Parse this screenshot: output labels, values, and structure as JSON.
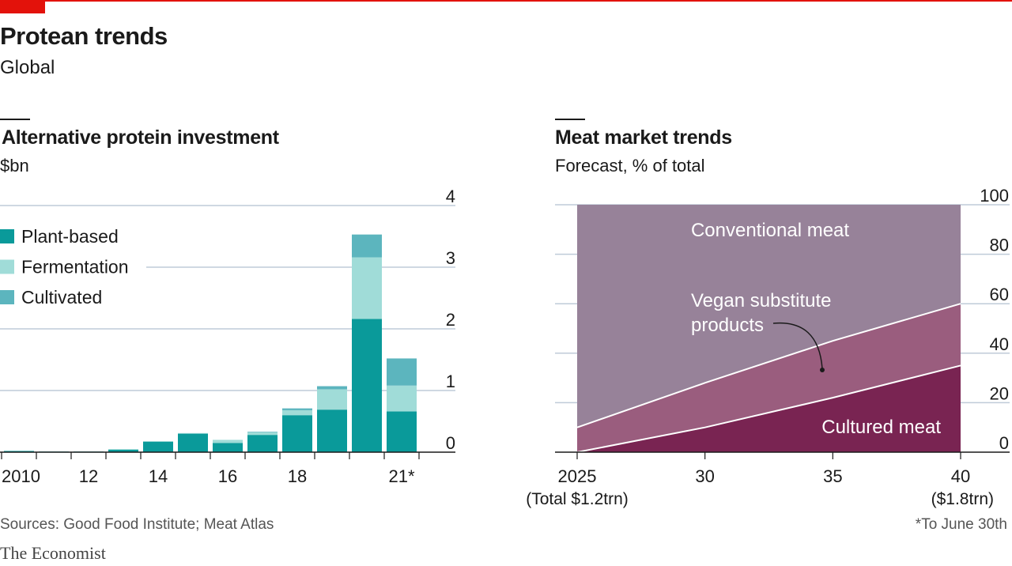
{
  "header": {
    "title": "Protean trends",
    "subtitle": "Global"
  },
  "footer": {
    "sources": "Sources: Good Food Institute; Meat Atlas",
    "note": "*To June 30th",
    "brand": "The Economist"
  },
  "colors": {
    "brand_red": "#e3120b",
    "plant_based": "#0a9a9a",
    "fermentation": "#a0dcd8",
    "cultivated": "#5cb5be",
    "conventional_meat": "#978299",
    "vegan_substitute": "#9a5d7e",
    "cultured_meat": "#792452",
    "gridline": "#bfcbd8"
  },
  "chart_data": [
    {
      "type": "bar",
      "stacked": true,
      "title": "Alternative protein investment",
      "subtitle": "$bn",
      "x": [
        2010,
        2011,
        2012,
        2013,
        2014,
        2015,
        2016,
        2017,
        2018,
        2019,
        2020,
        2021
      ],
      "x_tick_labels": [
        {
          "x": 2010,
          "label": "2010"
        },
        {
          "x": 2012,
          "label": "12"
        },
        {
          "x": 2014,
          "label": "14"
        },
        {
          "x": 2016,
          "label": "16"
        },
        {
          "x": 2018,
          "label": "18"
        },
        {
          "x": 2021,
          "label": "21*"
        }
      ],
      "series": [
        {
          "name": "Plant-based",
          "values": [
            0.02,
            0.01,
            0.01,
            0.04,
            0.17,
            0.3,
            0.15,
            0.28,
            0.6,
            0.69,
            2.16,
            0.66
          ]
        },
        {
          "name": "Fermentation",
          "values": [
            0,
            0,
            0,
            0.01,
            0.01,
            0.01,
            0.05,
            0.04,
            0.08,
            0.33,
            1.0,
            0.42
          ]
        },
        {
          "name": "Cultivated",
          "values": [
            0,
            0,
            0,
            0,
            0,
            0,
            0,
            0.01,
            0.03,
            0.05,
            0.37,
            0.44
          ]
        }
      ],
      "ylim": [
        0,
        4
      ],
      "yticks": [
        0,
        1,
        2,
        3,
        4
      ],
      "grid": true,
      "legend_position": "top-left"
    },
    {
      "type": "area",
      "stacked": true,
      "title": "Meat market trends",
      "subtitle": "Forecast, % of total",
      "x": [
        2025,
        2030,
        2035,
        2040
      ],
      "x_tick_labels": [
        {
          "x": 2025,
          "label": "2025",
          "sub": "(Total $1.2trn)"
        },
        {
          "x": 2030,
          "label": "30"
        },
        {
          "x": 2035,
          "label": "35"
        },
        {
          "x": 2040,
          "label": "40",
          "sub": "($1.8trn)"
        }
      ],
      "series": [
        {
          "name": "Cultured meat",
          "values": [
            0,
            10,
            22,
            35
          ]
        },
        {
          "name": "Vegan substitute products",
          "values": [
            10,
            18,
            23,
            25
          ]
        },
        {
          "name": "Conventional meat",
          "values": [
            90,
            72,
            55,
            40
          ]
        }
      ],
      "ylim": [
        0,
        100
      ],
      "yticks": [
        0,
        20,
        40,
        60,
        80,
        100
      ],
      "grid": true
    }
  ]
}
